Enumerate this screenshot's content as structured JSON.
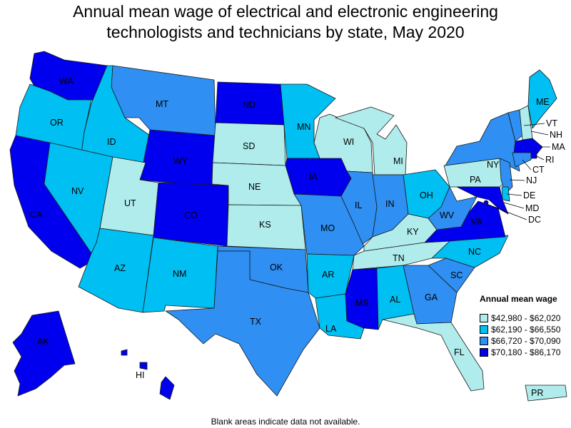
{
  "title_line1": "Annual mean wage of electrical and electronic engineering",
  "title_line2": "technologists and technicians by state, May 2020",
  "footnote": "Blank areas indicate data not available.",
  "legend": {
    "title": "Annual mean wage",
    "bins": [
      {
        "label": "$42,980 - $62,020",
        "color": "#b0ecec"
      },
      {
        "label": "$62,190 - $66,550",
        "color": "#00bff2"
      },
      {
        "label": "$66,720 - $70,090",
        "color": "#2f8ff2"
      },
      {
        "label": "$70,180 - $86,170",
        "color": "#0000ee"
      }
    ]
  },
  "states": {
    "WA": {
      "label": "WA",
      "bin": 3
    },
    "OR": {
      "label": "OR",
      "bin": 1
    },
    "CA": {
      "label": "CA",
      "bin": 3
    },
    "ID": {
      "label": "ID",
      "bin": 1
    },
    "NV": {
      "label": "NV",
      "bin": 1
    },
    "MT": {
      "label": "MT",
      "bin": 2
    },
    "WY": {
      "label": "WY",
      "bin": 3
    },
    "UT": {
      "label": "UT",
      "bin": 0
    },
    "AZ": {
      "label": "AZ",
      "bin": 1
    },
    "CO": {
      "label": "CO",
      "bin": 3
    },
    "NM": {
      "label": "NM",
      "bin": 1
    },
    "ND": {
      "label": "ND",
      "bin": 3
    },
    "SD": {
      "label": "SD",
      "bin": 0
    },
    "NE": {
      "label": "NE",
      "bin": 0
    },
    "KS": {
      "label": "KS",
      "bin": 0
    },
    "OK": {
      "label": "OK",
      "bin": 2
    },
    "TX": {
      "label": "TX",
      "bin": 2
    },
    "MN": {
      "label": "MN",
      "bin": 1
    },
    "IA": {
      "label": "IA",
      "bin": 3
    },
    "MO": {
      "label": "MO",
      "bin": 2
    },
    "AR": {
      "label": "AR",
      "bin": 1
    },
    "LA": {
      "label": "LA",
      "bin": 1
    },
    "WI": {
      "label": "WI",
      "bin": 0
    },
    "IL": {
      "label": "IL",
      "bin": 2
    },
    "MI": {
      "label": "MI",
      "bin": 0
    },
    "IN": {
      "label": "IN",
      "bin": 2
    },
    "OH": {
      "label": "OH",
      "bin": 1
    },
    "KY": {
      "label": "KY",
      "bin": 0
    },
    "TN": {
      "label": "TN",
      "bin": 0
    },
    "MS": {
      "label": "MS",
      "bin": 3
    },
    "AL": {
      "label": "AL",
      "bin": 1
    },
    "GA": {
      "label": "GA",
      "bin": 2
    },
    "FL": {
      "label": "FL",
      "bin": 0
    },
    "SC": {
      "label": "SC",
      "bin": 2
    },
    "NC": {
      "label": "NC",
      "bin": 1
    },
    "VA": {
      "label": "VA",
      "bin": 3
    },
    "WV": {
      "label": "WV",
      "bin": 2
    },
    "PA": {
      "label": "PA",
      "bin": 0
    },
    "NY": {
      "label": "NY",
      "bin": 2
    },
    "VT": {
      "label": "VT",
      "bin": 2
    },
    "NH": {
      "label": "NH",
      "bin": 0
    },
    "ME": {
      "label": "ME",
      "bin": 1
    },
    "MA": {
      "label": "MA",
      "bin": 3
    },
    "RI": {
      "label": "RI",
      "bin": 3
    },
    "CT": {
      "label": "CT",
      "bin": 2
    },
    "NJ": {
      "label": "NJ",
      "bin": 2
    },
    "DE": {
      "label": "DE",
      "bin": 1
    },
    "MD": {
      "label": "MD",
      "bin": 3
    },
    "DC": {
      "label": "DC",
      "bin": 3
    },
    "AK": {
      "label": "AK",
      "bin": 3
    },
    "HI": {
      "label": "HI",
      "bin": 3
    },
    "PR": {
      "label": "PR",
      "bin": 0
    }
  }
}
